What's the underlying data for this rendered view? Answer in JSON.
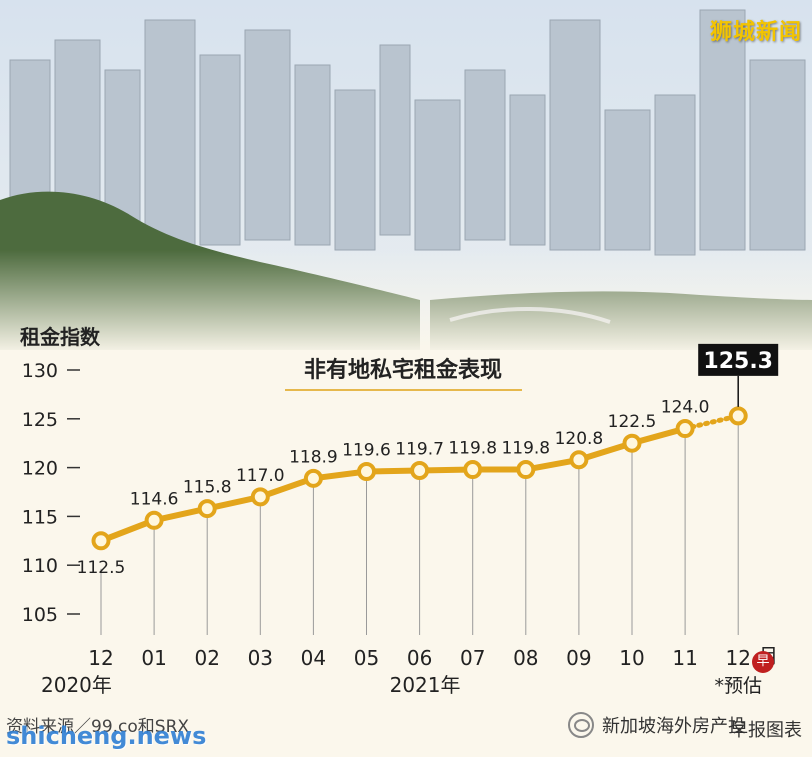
{
  "brand": "狮城新闻",
  "footer": {
    "source": "资料来源／99.co和SRX",
    "watermark": "shicheng.news",
    "wechat_account": "新加坡海外房产投",
    "credit": "早报图表"
  },
  "chart_data": {
    "type": "line",
    "title": "非有地私宅租金表现",
    "ylabel": "租金指数",
    "ylim": [
      105,
      130
    ],
    "yticks": [
      105,
      110,
      115,
      120,
      125,
      130
    ],
    "categories": [
      "12",
      "01",
      "02",
      "03",
      "04",
      "05",
      "06",
      "07",
      "08",
      "09",
      "10",
      "11",
      "12"
    ],
    "x_suffix": "月",
    "year_labels": [
      {
        "text": "2020年",
        "under_index": 0
      },
      {
        "text": "2021年",
        "under_index": 6
      }
    ],
    "forecast_note": "*预估",
    "series": [
      {
        "values": [
          112.5,
          114.6,
          115.8,
          117.0,
          118.9,
          119.6,
          119.7,
          119.8,
          119.8,
          120.8,
          122.5,
          124.0,
          125.3
        ],
        "labels": [
          "112.5",
          "114.6",
          "115.8",
          "117.0",
          "118.9",
          "119.6",
          "119.7",
          "119.8",
          "119.8",
          "120.8",
          "122.5",
          "124.0",
          "125.3"
        ],
        "forecast_from_index": 11,
        "color": "#e3a51b"
      }
    ],
    "grid": false
  }
}
